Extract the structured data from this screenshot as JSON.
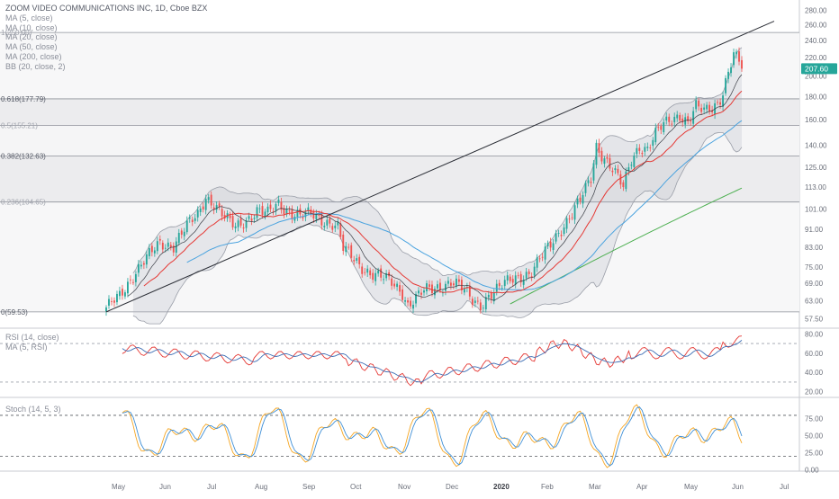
{
  "chart_data": [
    {
      "type": "candlestick",
      "title": "ZOOM VIDEO COMMUNICATIONS INC, 1D, Cboe BZX",
      "indicators": [
        "MA (5, close)",
        "MA (10, close)",
        "MA (20, close)",
        "MA (50, close)",
        "MA (200, close)",
        "BB (20, close, 2)"
      ],
      "last_price_label": "207.60",
      "y_scale": "log",
      "ylim": [
        55,
        290
      ],
      "y_ticks": [
        "280.00",
        "260.00",
        "240.00",
        "220.00",
        "200.00",
        "180.00",
        "160.00",
        "140.00",
        "125.00",
        "113.00",
        "101.00",
        "91.00",
        "83.00",
        "75.00",
        "69.00",
        "63.00",
        "57.50"
      ],
      "y_tick_values": [
        280,
        260,
        240,
        220,
        200,
        180,
        160,
        140,
        125,
        113,
        101,
        91,
        83,
        75,
        69,
        63,
        57.5
      ],
      "x_ticks": [
        "May",
        "Jun",
        "Jul",
        "Aug",
        "Sep",
        "Oct",
        "Nov",
        "Dec",
        "2020",
        "Feb",
        "Mar",
        "Apr",
        "May",
        "Jun",
        "Jul"
      ],
      "fib_levels": [
        {
          "label": "0(59.53)",
          "value": 59.53
        },
        {
          "label": "0.236(104.65)",
          "value": 104.65
        },
        {
          "label": "0.382(132.63)",
          "value": 132.63
        },
        {
          "label": "0.5(155.21)",
          "value": 155.21
        },
        {
          "label": "0.618(177.79)",
          "value": 177.79
        },
        {
          "label": "1(250.00)",
          "value": 250.0
        }
      ],
      "close_path": [
        [
          0,
          60
        ],
        [
          5,
          65
        ],
        [
          10,
          72
        ],
        [
          15,
          78
        ],
        [
          20,
          85
        ],
        [
          25,
          84
        ],
        [
          30,
          92
        ],
        [
          34,
          98
        ],
        [
          37,
          108
        ],
        [
          40,
          104
        ],
        [
          44,
          96
        ],
        [
          48,
          92
        ],
        [
          52,
          96
        ],
        [
          56,
          100
        ],
        [
          60,
          98
        ],
        [
          64,
          104
        ],
        [
          68,
          100
        ],
        [
          72,
          97
        ],
        [
          76,
          98
        ],
        [
          80,
          96
        ],
        [
          84,
          94
        ],
        [
          86,
          92
        ],
        [
          88,
          82
        ],
        [
          90,
          80
        ],
        [
          94,
          76
        ],
        [
          98,
          73
        ],
        [
          102,
          71
        ],
        [
          106,
          69
        ],
        [
          110,
          66
        ],
        [
          112,
          62
        ],
        [
          115,
          64
        ],
        [
          118,
          66
        ],
        [
          122,
          67
        ],
        [
          126,
          69
        ],
        [
          128,
          70
        ],
        [
          131,
          68
        ],
        [
          134,
          65
        ],
        [
          136,
          63
        ],
        [
          139,
          62
        ],
        [
          142,
          65
        ],
        [
          146,
          67
        ],
        [
          150,
          70
        ],
        [
          154,
          72
        ],
        [
          158,
          73
        ],
        [
          162,
          79
        ],
        [
          165,
          84
        ],
        [
          168,
          90
        ],
        [
          172,
          97
        ],
        [
          176,
          105
        ],
        [
          180,
          118
        ],
        [
          182,
          140
        ],
        [
          185,
          132
        ],
        [
          188,
          124
        ],
        [
          190,
          118
        ],
        [
          192,
          112
        ],
        [
          195,
          130
        ],
        [
          198,
          140
        ],
        [
          201,
          138
        ],
        [
          204,
          148
        ],
        [
          207,
          155
        ],
        [
          210,
          160
        ],
        [
          213,
          165
        ],
        [
          216,
          158
        ],
        [
          219,
          170
        ],
        [
          222,
          166
        ],
        [
          225,
          170
        ],
        [
          227,
          175
        ],
        [
          229,
          185
        ],
        [
          231,
          205
        ],
        [
          233,
          222
        ],
        [
          235,
          214
        ],
        [
          236,
          207.6
        ]
      ]
    },
    {
      "type": "line",
      "title": "RSI (14, close)",
      "series_labels": [
        "RSI (14, close)",
        "MA (5, RSI)"
      ],
      "ylim": [
        15,
        85
      ],
      "y_ticks": [
        "80.00",
        "60.00",
        "40.00",
        "20.00"
      ],
      "y_tick_values": [
        80,
        60,
        40,
        20
      ],
      "guide_levels": [
        70,
        30
      ]
    },
    {
      "type": "line",
      "title": "Stoch (14, 5, 3)",
      "ylim": [
        -2,
        105
      ],
      "y_ticks": [
        "75.00",
        "50.00",
        "25.00",
        "0.00"
      ],
      "y_tick_values": [
        75,
        50,
        25,
        0
      ],
      "guide_levels": [
        80,
        20
      ]
    }
  ]
}
